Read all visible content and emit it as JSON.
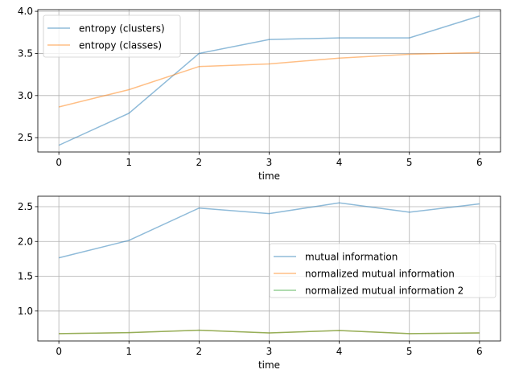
{
  "chart_data": [
    {
      "type": "line",
      "title": "",
      "xlabel": "time",
      "ylabel": "",
      "x": [
        0,
        1,
        2,
        3,
        4,
        5,
        6
      ],
      "xlim": [
        -0.3,
        6.3
      ],
      "ylim": [
        2.33,
        4.02
      ],
      "xticks": [
        "0",
        "1",
        "2",
        "3",
        "4",
        "5",
        "6"
      ],
      "yticks": [
        2.5,
        3.0,
        3.5,
        4.0
      ],
      "ytick_labels": [
        "2.5",
        "3.0",
        "3.5",
        "4.0"
      ],
      "grid": true,
      "legend_position": "upper-left",
      "series": [
        {
          "name": "entropy (clusters)",
          "color": "#1f77b4",
          "values": [
            2.41,
            2.79,
            3.5,
            3.665,
            3.685,
            3.685,
            3.945
          ]
        },
        {
          "name": "entropy (classes)",
          "color": "#ff7f0e",
          "values": [
            2.865,
            3.07,
            3.345,
            3.375,
            3.445,
            3.49,
            3.51
          ]
        }
      ]
    },
    {
      "type": "line",
      "title": "",
      "xlabel": "time",
      "ylabel": "",
      "x": [
        0,
        1,
        2,
        3,
        4,
        5,
        6
      ],
      "xlim": [
        -0.3,
        6.3
      ],
      "ylim": [
        0.57,
        2.65
      ],
      "xticks": [
        "0",
        "1",
        "2",
        "3",
        "4",
        "5",
        "6"
      ],
      "yticks": [
        1.0,
        1.5,
        2.0,
        2.5
      ],
      "ytick_labels": [
        "1.0",
        "1.5",
        "2.0",
        "2.5"
      ],
      "grid": true,
      "legend_position": "center-right",
      "series": [
        {
          "name": "mutual information",
          "color": "#1f77b4",
          "values": [
            1.765,
            2.015,
            2.48,
            2.4,
            2.555,
            2.42,
            2.54
          ]
        },
        {
          "name": "normalized mutual information",
          "color": "#ff7f0e",
          "values": [
            0.675,
            0.69,
            0.725,
            0.685,
            0.72,
            0.675,
            0.685
          ]
        },
        {
          "name": "normalized mutual information 2",
          "color": "#2ca02c",
          "values": [
            0.675,
            0.69,
            0.725,
            0.685,
            0.72,
            0.675,
            0.685
          ]
        }
      ]
    }
  ]
}
